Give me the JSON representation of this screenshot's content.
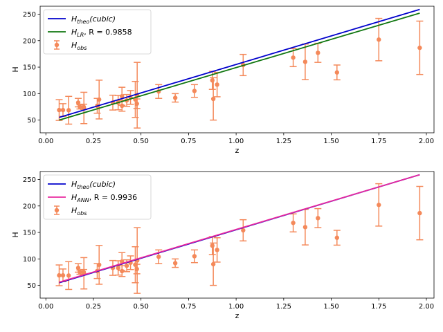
{
  "chart_data": [
    {
      "type": "scatter",
      "title": "",
      "xlabel": "z",
      "ylabel": "H",
      "xlim": [
        -0.03,
        2.04
      ],
      "ylim": [
        26,
        265
      ],
      "xticks": [
        0.0,
        0.25,
        0.5,
        0.75,
        1.0,
        1.25,
        1.5,
        1.75,
        2.0
      ],
      "xtick_labels": [
        "0.00",
        "0.25",
        "0.50",
        "0.75",
        "1.00",
        "1.25",
        "1.50",
        "1.75",
        "2.00"
      ],
      "yticks": [
        50,
        100,
        150,
        200,
        250
      ],
      "ytick_labels": [
        "50",
        "100",
        "150",
        "200",
        "250"
      ],
      "grid": false,
      "legend_position": "top-left",
      "lines": [
        {
          "name": "theo",
          "label_main": "H",
          "label_sub": "theo",
          "label_rest": "(cubic)",
          "color": "#0000cc",
          "x": [
            0.07,
            1.965
          ],
          "y": [
            55,
            259
          ]
        },
        {
          "name": "lr",
          "label_main": "H",
          "label_sub": "LR",
          "label_rest": ", R = 0.9858",
          "color": "#117711",
          "x": [
            0.07,
            1.965
          ],
          "y": [
            50,
            252
          ]
        }
      ],
      "observations": {
        "label_main": "H",
        "label_sub": "obs",
        "color": "#f4895a",
        "points": [
          {
            "x": 0.07,
            "y": 69,
            "err": 19.6
          },
          {
            "x": 0.09,
            "y": 69,
            "err": 12
          },
          {
            "x": 0.12,
            "y": 68.6,
            "err": 26.2
          },
          {
            "x": 0.17,
            "y": 83,
            "err": 8
          },
          {
            "x": 0.179,
            "y": 75,
            "err": 4
          },
          {
            "x": 0.199,
            "y": 75,
            "err": 5
          },
          {
            "x": 0.2,
            "y": 72.9,
            "err": 29.6
          },
          {
            "x": 0.27,
            "y": 77,
            "err": 14
          },
          {
            "x": 0.28,
            "y": 88.8,
            "err": 36.6
          },
          {
            "x": 0.352,
            "y": 83,
            "err": 14
          },
          {
            "x": 0.38,
            "y": 83,
            "err": 13.5
          },
          {
            "x": 0.4,
            "y": 95,
            "err": 17
          },
          {
            "x": 0.4004,
            "y": 77,
            "err": 10.2
          },
          {
            "x": 0.425,
            "y": 87.1,
            "err": 11.2
          },
          {
            "x": 0.445,
            "y": 92.8,
            "err": 12.9
          },
          {
            "x": 0.47,
            "y": 89,
            "err": 34
          },
          {
            "x": 0.4783,
            "y": 80.9,
            "err": 9
          },
          {
            "x": 0.48,
            "y": 97,
            "err": 62
          },
          {
            "x": 0.593,
            "y": 104,
            "err": 13
          },
          {
            "x": 0.68,
            "y": 92,
            "err": 8
          },
          {
            "x": 0.781,
            "y": 105,
            "err": 12
          },
          {
            "x": 0.875,
            "y": 125,
            "err": 17
          },
          {
            "x": 0.88,
            "y": 90,
            "err": 40
          },
          {
            "x": 0.9,
            "y": 117,
            "err": 23
          },
          {
            "x": 1.037,
            "y": 154,
            "err": 20
          },
          {
            "x": 1.3,
            "y": 168,
            "err": 17
          },
          {
            "x": 1.363,
            "y": 160,
            "err": 33.6
          },
          {
            "x": 1.43,
            "y": 177,
            "err": 18
          },
          {
            "x": 1.53,
            "y": 140,
            "err": 14
          },
          {
            "x": 1.75,
            "y": 202,
            "err": 40
          },
          {
            "x": 1.965,
            "y": 186.5,
            "err": 50.4
          }
        ]
      }
    },
    {
      "type": "scatter",
      "title": "",
      "xlabel": "z",
      "ylabel": "H",
      "xlim": [
        -0.03,
        2.04
      ],
      "ylim": [
        26,
        265
      ],
      "xticks": [
        0.0,
        0.25,
        0.5,
        0.75,
        1.0,
        1.25,
        1.5,
        1.75,
        2.0
      ],
      "xtick_labels": [
        "0.00",
        "0.25",
        "0.50",
        "0.75",
        "1.00",
        "1.25",
        "1.50",
        "1.75",
        "2.00"
      ],
      "yticks": [
        50,
        100,
        150,
        200,
        250
      ],
      "ytick_labels": [
        "50",
        "100",
        "150",
        "200",
        "250"
      ],
      "grid": false,
      "legend_position": "top-left",
      "lines": [
        {
          "name": "theo",
          "label_main": "H",
          "label_sub": "theo",
          "label_rest": "(cubic)",
          "color": "#0000cc",
          "x": [
            0.07,
            1.965
          ],
          "y": [
            55,
            259
          ]
        },
        {
          "name": "ann",
          "label_main": "H",
          "label_sub": "ANN",
          "label_rest": ", R = 0.9936",
          "color": "#e8289e",
          "x": [
            0.07,
            1.965
          ],
          "y": [
            56,
            259
          ]
        }
      ],
      "observations": {
        "label_main": "H",
        "label_sub": "obs",
        "color": "#f4895a",
        "points": [
          {
            "x": 0.07,
            "y": 69,
            "err": 19.6
          },
          {
            "x": 0.09,
            "y": 69,
            "err": 12
          },
          {
            "x": 0.12,
            "y": 68.6,
            "err": 26.2
          },
          {
            "x": 0.17,
            "y": 83,
            "err": 8
          },
          {
            "x": 0.179,
            "y": 75,
            "err": 4
          },
          {
            "x": 0.199,
            "y": 75,
            "err": 5
          },
          {
            "x": 0.2,
            "y": 72.9,
            "err": 29.6
          },
          {
            "x": 0.27,
            "y": 77,
            "err": 14
          },
          {
            "x": 0.28,
            "y": 88.8,
            "err": 36.6
          },
          {
            "x": 0.352,
            "y": 83,
            "err": 14
          },
          {
            "x": 0.38,
            "y": 83,
            "err": 13.5
          },
          {
            "x": 0.4,
            "y": 95,
            "err": 17
          },
          {
            "x": 0.4004,
            "y": 77,
            "err": 10.2
          },
          {
            "x": 0.425,
            "y": 87.1,
            "err": 11.2
          },
          {
            "x": 0.445,
            "y": 92.8,
            "err": 12.9
          },
          {
            "x": 0.47,
            "y": 89,
            "err": 34
          },
          {
            "x": 0.4783,
            "y": 80.9,
            "err": 9
          },
          {
            "x": 0.48,
            "y": 97,
            "err": 62
          },
          {
            "x": 0.593,
            "y": 104,
            "err": 13
          },
          {
            "x": 0.68,
            "y": 92,
            "err": 8
          },
          {
            "x": 0.781,
            "y": 105,
            "err": 12
          },
          {
            "x": 0.875,
            "y": 125,
            "err": 17
          },
          {
            "x": 0.88,
            "y": 90,
            "err": 40
          },
          {
            "x": 0.9,
            "y": 117,
            "err": 23
          },
          {
            "x": 1.037,
            "y": 154,
            "err": 20
          },
          {
            "x": 1.3,
            "y": 168,
            "err": 17
          },
          {
            "x": 1.363,
            "y": 160,
            "err": 33.6
          },
          {
            "x": 1.43,
            "y": 177,
            "err": 18
          },
          {
            "x": 1.53,
            "y": 140,
            "err": 14
          },
          {
            "x": 1.75,
            "y": 202,
            "err": 40
          },
          {
            "x": 1.965,
            "y": 186.5,
            "err": 50.4
          }
        ]
      }
    }
  ]
}
